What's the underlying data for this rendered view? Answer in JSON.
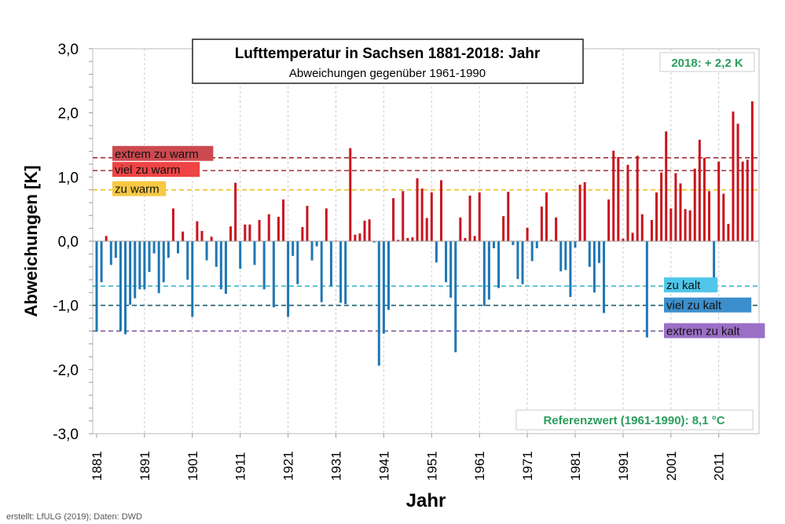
{
  "chart_data": {
    "type": "bar",
    "title": "Lufttemperatur in Sachsen 1881-2018: Jahr",
    "subtitle": "Abweichungen gegenüber 1961-1990",
    "xlabel": "Jahr",
    "ylabel": "Abweichungen [K]",
    "ylim": [
      -3.0,
      3.0
    ],
    "y_ticks": [
      "3,0",
      "2,0",
      "1,0",
      "0,0",
      "-1,0",
      "-2,0",
      "-3,0"
    ],
    "x_ticks": [
      "1881",
      "1891",
      "1901",
      "1911",
      "1921",
      "1931",
      "1941",
      "1951",
      "1961",
      "1971",
      "1981",
      "1991",
      "2001",
      "2011"
    ],
    "grid": "vertical dashed at decade ticks",
    "x_start": 1881,
    "x_end": 2018,
    "values": [
      -1.41,
      -0.64,
      0.08,
      -0.37,
      -0.26,
      -1.4,
      -1.45,
      -0.99,
      -0.89,
      -0.75,
      -0.75,
      -0.48,
      -0.19,
      -0.81,
      -0.64,
      -0.26,
      0.51,
      -0.19,
      0.15,
      -0.6,
      -1.18,
      0.31,
      0.16,
      -0.3,
      0.07,
      -0.4,
      -0.75,
      -0.82,
      0.23,
      0.91,
      -0.43,
      0.26,
      0.26,
      -0.37,
      0.33,
      -0.75,
      0.42,
      -1.03,
      0.38,
      0.65,
      -1.18,
      -0.23,
      -0.67,
      0.22,
      0.55,
      -0.3,
      -0.08,
      -0.95,
      0.51,
      -0.7,
      0.01,
      -0.96,
      -0.98,
      1.45,
      0.1,
      0.12,
      0.32,
      0.34,
      -0.02,
      -1.94,
      -1.44,
      -1.07,
      0.67,
      0.02,
      0.78,
      0.05,
      0.06,
      0.98,
      0.82,
      0.36,
      0.76,
      -0.33,
      0.95,
      -0.64,
      -0.88,
      -1.73,
      0.37,
      0.05,
      0.71,
      0.08,
      0.76,
      -1.01,
      -0.91,
      -0.11,
      -0.73,
      0.39,
      0.77,
      -0.06,
      -0.59,
      -0.67,
      0.21,
      -0.31,
      -0.11,
      0.54,
      0.76,
      0.02,
      0.37,
      -0.47,
      -0.45,
      -0.87,
      -0.1,
      0.88,
      0.92,
      -0.4,
      -0.8,
      -0.34,
      -1.12,
      0.65,
      1.41,
      1.31,
      0.04,
      1.19,
      0.13,
      1.33,
      0.42,
      -1.5,
      0.33,
      0.76,
      1.07,
      1.71,
      0.51,
      1.06,
      0.9,
      0.5,
      0.48,
      1.13,
      1.58,
      1.3,
      0.78,
      -0.64,
      1.24,
      0.74,
      0.27,
      2.02,
      1.83,
      1.24,
      1.27,
      2.18
    ],
    "colors": {
      "positive": "#c8141e",
      "negative": "#1f77b4"
    },
    "thresholds": [
      {
        "label": "extrem zu warm",
        "value": 1.3,
        "line_color": "#a0303a",
        "label_bg": "#cc4a4f"
      },
      {
        "label": "viel zu warm",
        "value": 1.1,
        "line_color": "#a0303a",
        "label_bg": "#ee4444"
      },
      {
        "label": "zu warm",
        "value": 0.8,
        "line_color": "#e8c020",
        "label_bg": "#f7c843"
      },
      {
        "label": "zu kalt",
        "value": -0.7,
        "line_color": "#3fb6c9",
        "label_bg": "#4fc6ea"
      },
      {
        "label": "viel zu kalt",
        "value": -1.0,
        "line_color": "#1f5f6f",
        "label_bg": "#3c8fcc"
      },
      {
        "label": "extrem zu kalt",
        "value": -1.4,
        "line_color": "#7a4f9a",
        "label_bg": "#9b6fc6"
      }
    ],
    "annotations": {
      "latest": "2018: + 2,2 K",
      "reference": "Referenzwert (1961-1990): 8,1 °C"
    },
    "annotation_color": "#2a9d5c"
  },
  "footer": "erstellt: LfULG (2019); Daten: DWD"
}
